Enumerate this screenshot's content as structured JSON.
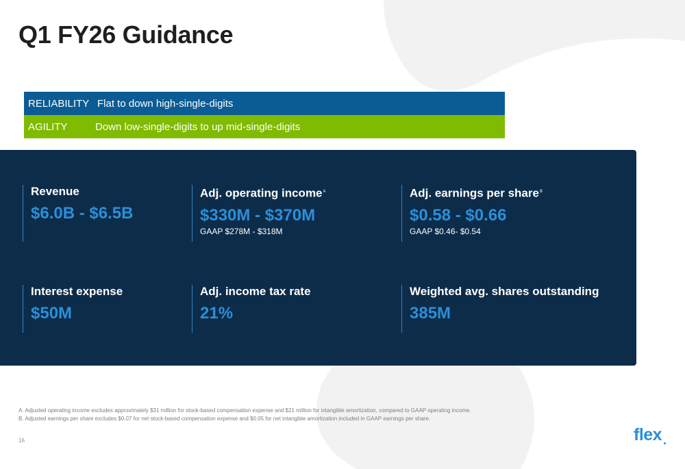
{
  "slide": {
    "title": "Q1 FY26 Guidance",
    "page_number": "16",
    "logo_text": "flex"
  },
  "segments": [
    {
      "name": "RELIABILITY",
      "guidance": "Flat to down high-single-digits",
      "color": "#0b5c94"
    },
    {
      "name": "AGILITY",
      "guidance": "Down low-single-digits to up mid-single-digits",
      "color": "#7fbb00"
    }
  ],
  "metrics": [
    {
      "label": "Revenue",
      "sup": "",
      "value": "$6.0B - $6.5B",
      "gaap": ""
    },
    {
      "label": "Adj. operating income",
      "sup": "A",
      "value": "$330M - $370M",
      "gaap": "GAAP $278M - $318M"
    },
    {
      "label": "Adj. earnings per share",
      "sup": "B",
      "value": "$0.58 - $0.66",
      "gaap": "GAAP $0.46- $0.54"
    },
    {
      "label": "Interest expense",
      "sup": "",
      "value": "$50M",
      "gaap": ""
    },
    {
      "label": "Adj. income tax rate",
      "sup": "",
      "value": "21%",
      "gaap": ""
    },
    {
      "label": "Weighted avg. shares outstanding",
      "sup": "",
      "value": "385M",
      "gaap": ""
    }
  ],
  "footnotes": [
    "A.  Adjusted operating income excludes approximately $31 million for stock-based compensation expense and $21 million for intangible amortization, compared to GAAP operating income.",
    "B.  Adjusted earnings per share excludes $0.07 for net stock-based compensation expense and $0.05 for net intangible amortization included in GAAP earnings per share."
  ],
  "colors": {
    "panel_bg": "#0d2c4a",
    "accent_blue": "#2b8fd8",
    "reliability": "#0b5c94",
    "agility": "#7fbb00"
  }
}
